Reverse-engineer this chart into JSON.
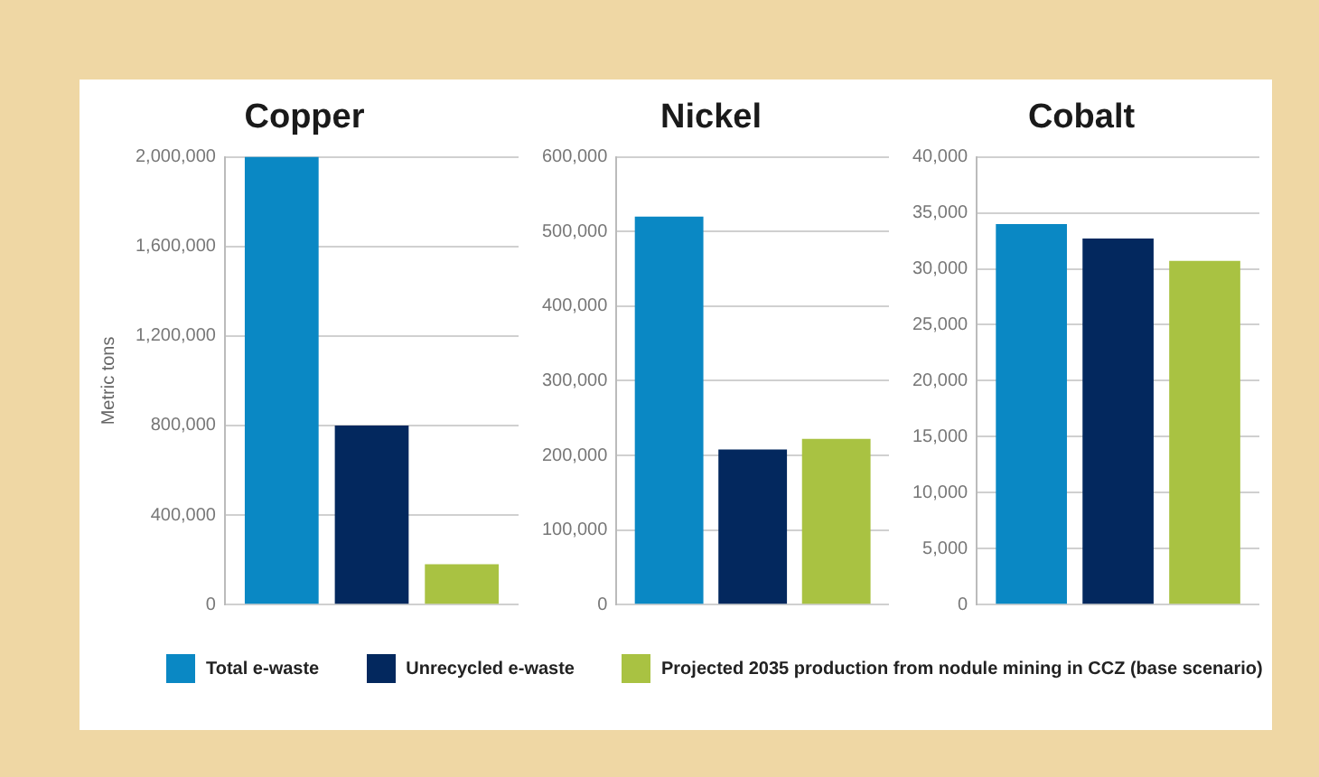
{
  "chart_data": [
    {
      "type": "bar",
      "title": "Copper",
      "ylabel": "Metric tons",
      "categories": [
        null
      ],
      "series": [
        {
          "name": "Total e-waste",
          "color": "#0a88c4",
          "values": [
            2000000
          ]
        },
        {
          "name": "Unrecycled e-waste",
          "color": "#03285e",
          "values": [
            800000
          ]
        },
        {
          "name": "Projected 2035 production from nodule mining in CCZ (base scenario)",
          "color": "#a9c242",
          "values": [
            180000
          ]
        }
      ],
      "ylim": [
        0,
        2000000
      ],
      "yticks": [
        {
          "value": 0,
          "label": "0"
        },
        {
          "value": 400000,
          "label": "400,000"
        },
        {
          "value": 800000,
          "label": "800,000"
        },
        {
          "value": 1200000,
          "label": "1,200,000"
        },
        {
          "value": 1600000,
          "label": "1,600,000"
        },
        {
          "value": 2000000,
          "label": "2,000,000"
        }
      ],
      "grid": "y",
      "legend": "bottom"
    },
    {
      "type": "bar",
      "title": "Nickel",
      "categories": [
        null
      ],
      "series": [
        {
          "color": "#0a88c4",
          "values": [
            520000
          ]
        },
        {
          "color": "#03285e",
          "values": [
            208000
          ]
        },
        {
          "color": "#a9c242",
          "values": [
            222000
          ]
        }
      ],
      "ylim": [
        0,
        600000
      ],
      "yticks": [
        {
          "value": 0,
          "label": "0"
        },
        {
          "value": 100000,
          "label": "100,000"
        },
        {
          "value": 200000,
          "label": "200,000"
        },
        {
          "value": 300000,
          "label": "300,000"
        },
        {
          "value": 400000,
          "label": "400,000"
        },
        {
          "value": 500000,
          "label": "500,000"
        },
        {
          "value": 600000,
          "label": "600,000"
        }
      ],
      "grid": "y"
    },
    {
      "type": "bar",
      "title": "Cobalt",
      "categories": [
        null
      ],
      "series": [
        {
          "color": "#0a88c4",
          "values": [
            34000
          ]
        },
        {
          "color": "#03285e",
          "values": [
            32700
          ]
        },
        {
          "color": "#a9c242",
          "values": [
            30700
          ]
        }
      ],
      "ylim": [
        0,
        40000
      ],
      "yticks": [
        {
          "value": 0,
          "label": "0"
        },
        {
          "value": 5000,
          "label": "5,000"
        },
        {
          "value": 10000,
          "label": "10,000"
        },
        {
          "value": 15000,
          "label": "15,000"
        },
        {
          "value": 20000,
          "label": "20,000"
        },
        {
          "value": 25000,
          "label": "25,000"
        },
        {
          "value": 30000,
          "label": "30,000"
        },
        {
          "value": 35000,
          "label": "35,000"
        },
        {
          "value": 40000,
          "label": "40,000"
        }
      ],
      "grid": "y"
    }
  ]
}
